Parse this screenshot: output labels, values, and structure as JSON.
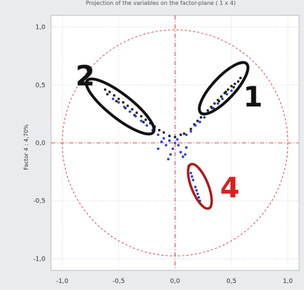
{
  "chart_data": {
    "type": "scatter",
    "title": "Projection of the variables on the factor-plane ( 1 x 4)",
    "xlabel": "",
    "ylabel": "Factor 4 : 4,70%",
    "xlim": [
      -1.1,
      1.1
    ],
    "ylim": [
      -1.1,
      1.1
    ],
    "x_ticks": [
      "-1,0",
      "-0,5",
      "0,0",
      "0,5",
      "1,0"
    ],
    "y_ticks": [
      "1,0",
      "0,5",
      "0,0",
      "-0,5",
      "-1,0"
    ],
    "grid": true,
    "unit_circle": true,
    "series": [
      {
        "color": "#222222",
        "points": [
          [
            0.56,
            0.53
          ],
          [
            0.53,
            0.51
          ],
          [
            0.5,
            0.49
          ],
          [
            0.47,
            0.46
          ],
          [
            0.44,
            0.43
          ],
          [
            0.41,
            0.4
          ],
          [
            0.38,
            0.37
          ],
          [
            0.35,
            0.34
          ],
          [
            0.32,
            0.31
          ],
          [
            0.29,
            0.28
          ],
          [
            0.26,
            0.25
          ],
          [
            0.23,
            0.22
          ],
          [
            0.2,
            0.19
          ],
          [
            0.17,
            0.16
          ],
          [
            0.14,
            0.12
          ],
          [
            0.58,
            0.56
          ],
          [
            0.52,
            0.48
          ],
          [
            0.45,
            0.44
          ],
          [
            0.39,
            0.36
          ],
          [
            0.33,
            0.3
          ],
          [
            -0.62,
            0.46
          ],
          [
            -0.58,
            0.44
          ],
          [
            -0.54,
            0.41
          ],
          [
            -0.5,
            0.38
          ],
          [
            -0.46,
            0.35
          ],
          [
            -0.42,
            0.32
          ],
          [
            -0.38,
            0.29
          ],
          [
            -0.34,
            0.26
          ],
          [
            -0.3,
            0.23
          ],
          [
            -0.26,
            0.2
          ],
          [
            -0.22,
            0.17
          ],
          [
            -0.18,
            0.14
          ],
          [
            -0.14,
            0.11
          ],
          [
            -0.6,
            0.42
          ],
          [
            -0.52,
            0.36
          ],
          [
            -0.44,
            0.3
          ],
          [
            -0.36,
            0.24
          ],
          [
            -0.28,
            0.18
          ],
          [
            -0.1,
            0.09
          ],
          [
            -0.05,
            0.06
          ],
          [
            0.0,
            0.05
          ],
          [
            0.05,
            0.07
          ],
          [
            0.08,
            0.08
          ]
        ]
      },
      {
        "color": "#2a3fd6",
        "points": [
          [
            0.5,
            0.45
          ],
          [
            0.46,
            0.42
          ],
          [
            0.42,
            0.38
          ],
          [
            0.38,
            0.34
          ],
          [
            0.34,
            0.3
          ],
          [
            0.3,
            0.26
          ],
          [
            0.26,
            0.22
          ],
          [
            0.22,
            0.18
          ],
          [
            0.18,
            0.15
          ],
          [
            0.14,
            0.1
          ],
          [
            0.1,
            0.07
          ],
          [
            -0.55,
            0.38
          ],
          [
            -0.5,
            0.35
          ],
          [
            -0.45,
            0.31
          ],
          [
            -0.4,
            0.27
          ],
          [
            -0.35,
            0.23
          ],
          [
            -0.3,
            0.19
          ],
          [
            -0.25,
            0.15
          ],
          [
            -0.2,
            0.11
          ],
          [
            -0.15,
            0.07
          ],
          [
            -0.1,
            0.04
          ],
          [
            -0.05,
            0.02
          ],
          [
            0.0,
            0.0
          ],
          [
            0.03,
            -0.02
          ],
          [
            -0.02,
            -0.05
          ],
          [
            0.05,
            -0.08
          ],
          [
            -0.08,
            -0.02
          ],
          [
            0.1,
            -0.04
          ],
          [
            -0.12,
            0.01
          ],
          [
            0.02,
            0.03
          ],
          [
            -0.04,
            -0.1
          ],
          [
            0.12,
            -0.2
          ],
          [
            0.14,
            -0.26
          ],
          [
            0.16,
            -0.32
          ],
          [
            0.18,
            -0.38
          ],
          [
            0.2,
            -0.44
          ],
          [
            0.22,
            -0.5
          ],
          [
            0.15,
            -0.29
          ],
          [
            0.19,
            -0.41
          ],
          [
            0.21,
            -0.47
          ],
          [
            0.07,
            -0.12
          ],
          [
            -0.06,
            -0.14
          ],
          [
            0.09,
            -0.1
          ],
          [
            -0.15,
            -0.05
          ]
        ]
      }
    ],
    "annotations": [
      {
        "text": "1",
        "color": "#111111"
      },
      {
        "text": "2",
        "color": "#111111"
      },
      {
        "text": "4",
        "color": "#d92020"
      }
    ]
  }
}
